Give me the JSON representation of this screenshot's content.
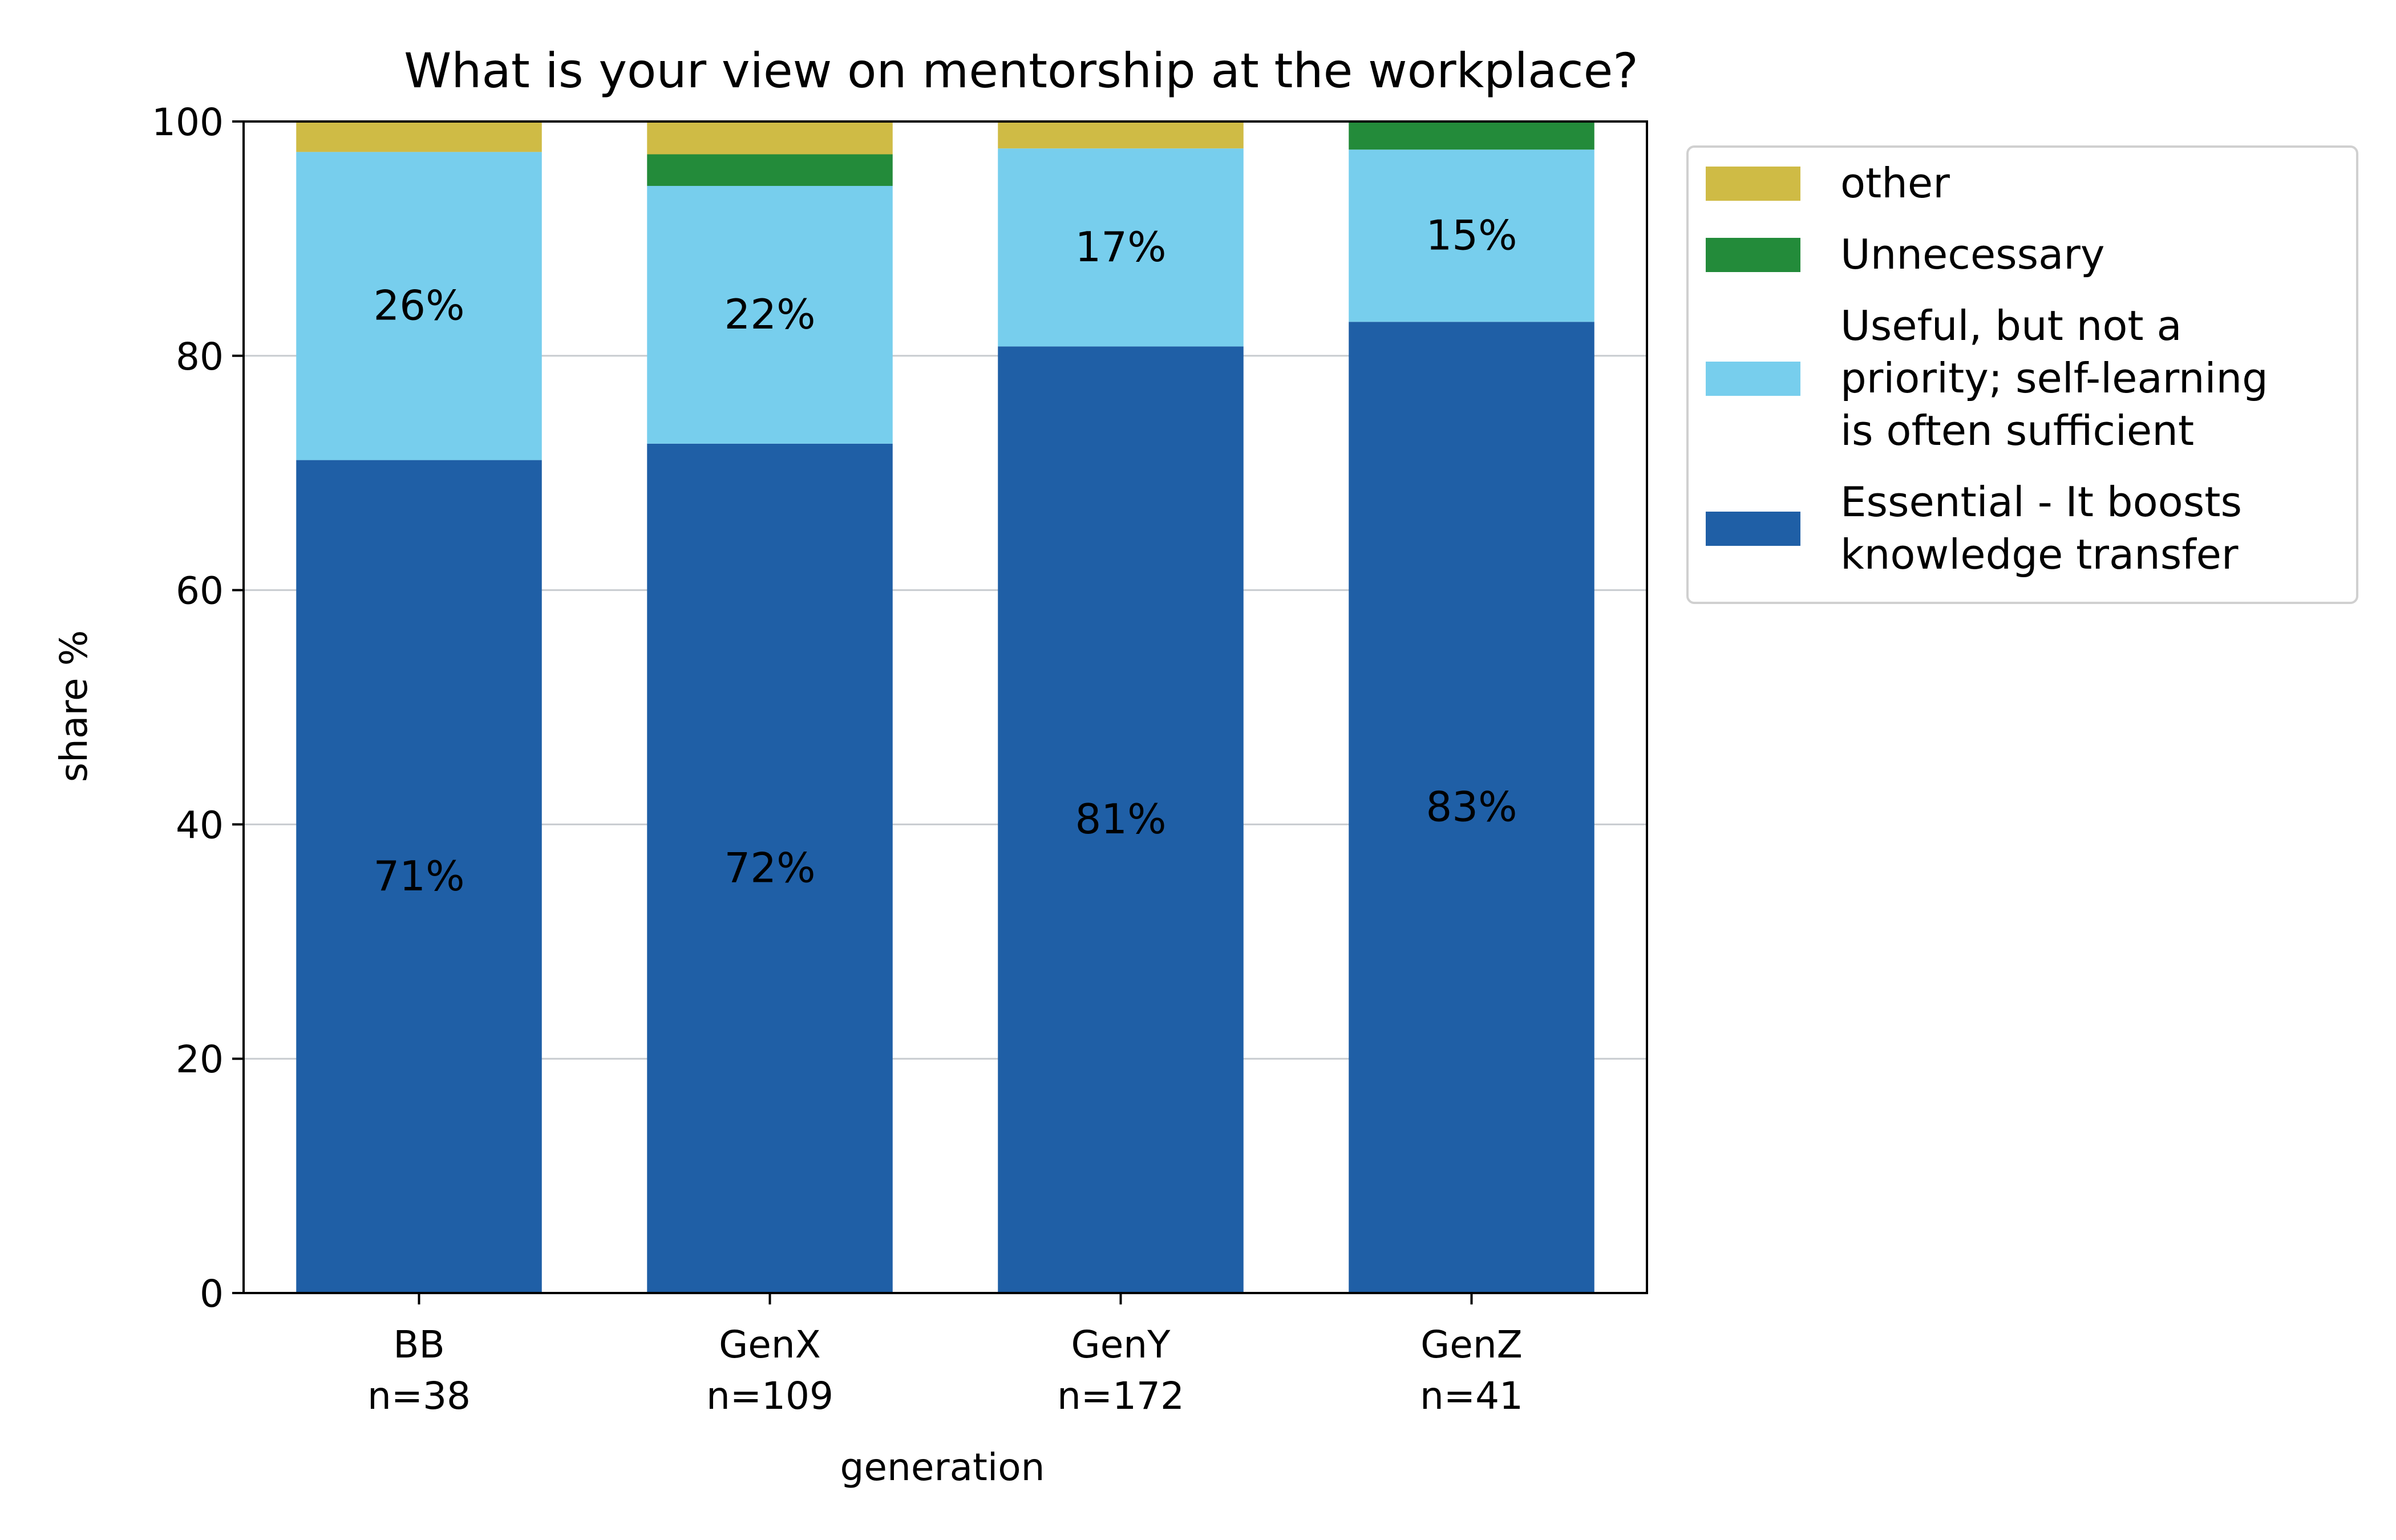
{
  "chart_data": {
    "type": "bar",
    "stacked": true,
    "title": "What is your view on mentorship at the workplace?",
    "xlabel": "generation",
    "ylabel": "share %",
    "ylim": [
      0,
      100
    ],
    "yticks": [
      0,
      20,
      40,
      60,
      80,
      100
    ],
    "grid": "horizontal",
    "legend_position": "outside-right",
    "categories": [
      {
        "name": "BB",
        "n_label": "n=38"
      },
      {
        "name": "GenX",
        "n_label": "n=109"
      },
      {
        "name": "GenY",
        "n_label": "n=172"
      },
      {
        "name": "GenZ",
        "n_label": "n=41"
      }
    ],
    "series": [
      {
        "name": "Essential - It boosts knowledge transfer",
        "legend_lines": [
          "Essential - It boosts",
          "knowledge transfer"
        ],
        "color": "#1f5fa6",
        "values": [
          71.1,
          72.5,
          80.8,
          82.9
        ],
        "labels": [
          "71%",
          "72%",
          "81%",
          "83%"
        ]
      },
      {
        "name": "Useful, but not a priority; self-learning is often sufficient",
        "legend_lines": [
          "Useful, but not a",
          "priority; self-learning",
          "is often sufficient"
        ],
        "color": "#77ceed",
        "values": [
          26.3,
          22.0,
          16.9,
          14.7
        ],
        "labels": [
          "26%",
          "22%",
          "17%",
          ""
        ]
      },
      {
        "name": "Unnecessary",
        "legend_lines": [
          "Unnecessary"
        ],
        "color": "#238b3a",
        "values": [
          0.0,
          2.7,
          0.0,
          2.4
        ],
        "labels": [
          "",
          "",
          "",
          ""
        ]
      },
      {
        "name": "other",
        "legend_lines": [
          "other"
        ],
        "color": "#cfbb45",
        "values": [
          2.6,
          2.8,
          2.3,
          0.0
        ],
        "labels": [
          "",
          "",
          "",
          ""
        ]
      }
    ],
    "extra_labels": [
      {
        "category_index": 3,
        "series_index": 1,
        "text": "15%"
      }
    ]
  }
}
